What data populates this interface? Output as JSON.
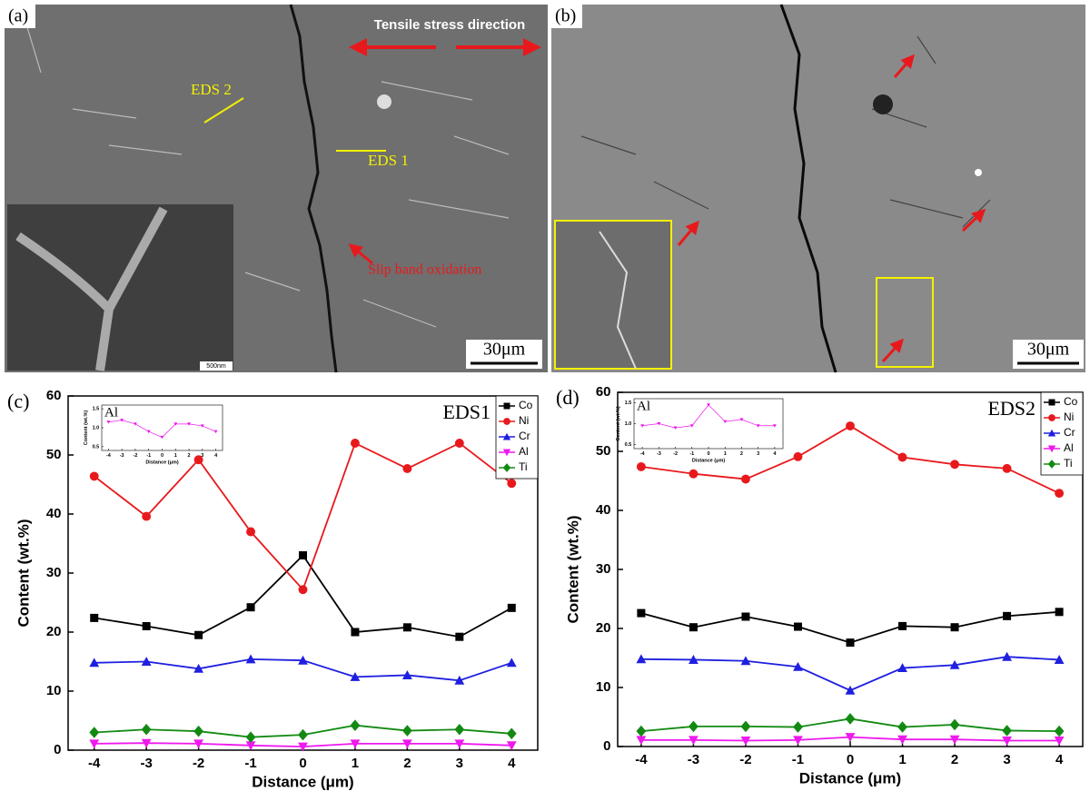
{
  "panels": {
    "a": {
      "label": "(a)",
      "arrow_text": "Tensile stress direction",
      "eds2": "EDS 2",
      "eds1": "EDS 1",
      "slip": "Slip band oxidation",
      "inset_scale": "500nm",
      "scale": "30μm"
    },
    "b": {
      "label": "(b)",
      "scale": "30μm"
    }
  },
  "chart_data": [
    {
      "type": "line",
      "label": "(c)",
      "annotation": "EDS1",
      "xlabel": "Distance (μm)",
      "ylabel": "Content (wt.%)",
      "x": [
        -4,
        -3,
        -2,
        -1,
        0,
        1,
        2,
        3,
        4
      ],
      "xlim": [
        -4.5,
        4.5
      ],
      "xticks": [
        -4,
        -3,
        -2,
        -1,
        0,
        1,
        2,
        3,
        4
      ],
      "ylim": [
        0,
        60
      ],
      "yticks": [
        0,
        10,
        20,
        30,
        40,
        50,
        60
      ],
      "legend": "upper right",
      "series": [
        {
          "name": "Co",
          "color": "#000000",
          "marker": "square",
          "values": [
            22.4,
            21,
            19.5,
            24.2,
            33,
            20,
            20.8,
            19.2,
            24.1
          ]
        },
        {
          "name": "Ni",
          "color": "#e8191c",
          "marker": "circle",
          "values": [
            46.4,
            39.6,
            49.2,
            37,
            27.2,
            52,
            47.7,
            52,
            45.2
          ]
        },
        {
          "name": "Cr",
          "color": "#1f1fe0",
          "marker": "triangle-up",
          "values": [
            14.8,
            15,
            13.8,
            15.4,
            15.2,
            12.4,
            12.7,
            11.8,
            14.8
          ]
        },
        {
          "name": "Al",
          "color": "#ee19ee",
          "marker": "triangle-down",
          "values": [
            1.1,
            1.2,
            1.1,
            0.8,
            0.6,
            1.1,
            1.1,
            1.1,
            0.8
          ]
        },
        {
          "name": "Ti",
          "color": "#128a12",
          "marker": "diamond",
          "values": [
            3,
            3.5,
            3.2,
            2.2,
            2.6,
            4.2,
            3.3,
            3.5,
            2.8
          ]
        }
      ]
    },
    {
      "type": "line",
      "label": "(d)",
      "annotation": "EDS2",
      "xlabel": "Distance (μm)",
      "ylabel": "Content (wt.%)",
      "x": [
        -4,
        -3,
        -2,
        -1,
        0,
        1,
        2,
        3,
        4
      ],
      "xlim": [
        -4.45,
        4.45
      ],
      "xticks": [
        -4,
        -3,
        -2,
        -1,
        0,
        1,
        2,
        3,
        4
      ],
      "ylim": [
        0,
        60
      ],
      "yticks": [
        0,
        10,
        20,
        30,
        40,
        50,
        60
      ],
      "legend": "upper right",
      "series": [
        {
          "name": "Co",
          "color": "#000000",
          "marker": "square",
          "values": [
            22.6,
            20.2,
            22,
            20.3,
            17.6,
            20.4,
            20.2,
            22.1,
            22.8
          ]
        },
        {
          "name": "Ni",
          "color": "#e8191c",
          "marker": "circle",
          "values": [
            47.4,
            46.2,
            45.3,
            49.1,
            54.3,
            49,
            47.8,
            47.1,
            42.9
          ]
        },
        {
          "name": "Cr",
          "color": "#1f1fe0",
          "marker": "triangle-up",
          "values": [
            14.8,
            14.7,
            14.5,
            13.5,
            9.5,
            13.3,
            13.8,
            15.2,
            14.7
          ]
        },
        {
          "name": "Al",
          "color": "#ee19ee",
          "marker": "triangle-down",
          "values": [
            1.1,
            1.1,
            1,
            1.1,
            1.6,
            1.2,
            1.2,
            1,
            1
          ]
        },
        {
          "name": "Ti",
          "color": "#128a12",
          "marker": "diamond",
          "values": [
            2.6,
            3.4,
            3.4,
            3.3,
            4.7,
            3.3,
            3.7,
            2.7,
            2.6
          ]
        }
      ]
    },
    {
      "type": "line",
      "title": "Al",
      "xlabel": "Distance (μm)",
      "ylabel": "Content (wt.%)",
      "x": [
        -4,
        -3,
        -2,
        -1,
        0,
        1,
        2,
        3,
        4
      ],
      "xlim": [
        -4.5,
        4.5
      ],
      "xticks": [
        -4,
        -3,
        -2,
        -1,
        0,
        1,
        2,
        3,
        4
      ],
      "ylim": [
        0.4,
        1.6
      ],
      "yticks": [
        {
          "value": 0.5,
          "label": "0.5"
        },
        {
          "value": 1,
          "label": "1.0"
        },
        {
          "value": 1.5,
          "label": "1.5"
        }
      ],
      "color": "#ee19ee",
      "marker": "triangle-down",
      "values": [
        1.15,
        1.2,
        1.1,
        0.9,
        0.75,
        1.1,
        1.1,
        1.05,
        0.9
      ]
    },
    {
      "type": "line",
      "title": "Al",
      "xlabel": "Distance (μm)",
      "ylabel": "Content (wt.%)",
      "x": [
        -4,
        -3,
        -2,
        -1,
        0,
        1,
        2,
        3,
        4
      ],
      "xlim": [
        -4.5,
        4.5
      ],
      "xticks": [
        -4,
        -3,
        -2,
        -1,
        0,
        1,
        2,
        3,
        4
      ],
      "ylim": [
        0.4,
        1.6
      ],
      "yticks": [
        {
          "value": 0.5,
          "label": "0.5"
        },
        {
          "value": 1,
          "label": "1.0"
        },
        {
          "value": 1.5,
          "label": "1.5"
        }
      ],
      "color": "#ee19ee",
      "marker": "triangle-down",
      "values": [
        0.95,
        1,
        0.9,
        0.95,
        1.45,
        1.05,
        1.1,
        0.95,
        0.95
      ]
    }
  ]
}
